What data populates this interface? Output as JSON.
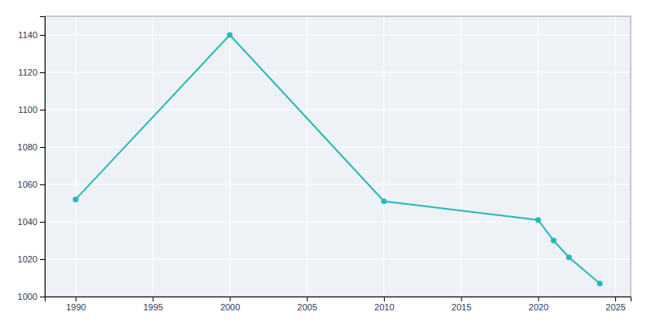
{
  "chart_data": {
    "type": "line",
    "x": [
      1990,
      2000,
      2010,
      2020,
      2021,
      2022,
      2024
    ],
    "values": [
      1052,
      1140,
      1051,
      1041,
      1030,
      1021,
      1007
    ],
    "color": "#2ab8b8",
    "marker": "circle",
    "xlim": [
      1988,
      2026
    ],
    "ylim": [
      1000,
      1150
    ],
    "xticks": [
      1990,
      1995,
      2000,
      2005,
      2010,
      2015,
      2020,
      2025
    ],
    "yticks": [
      1000,
      1020,
      1040,
      1060,
      1080,
      1100,
      1120,
      1140
    ],
    "grid": true
  }
}
